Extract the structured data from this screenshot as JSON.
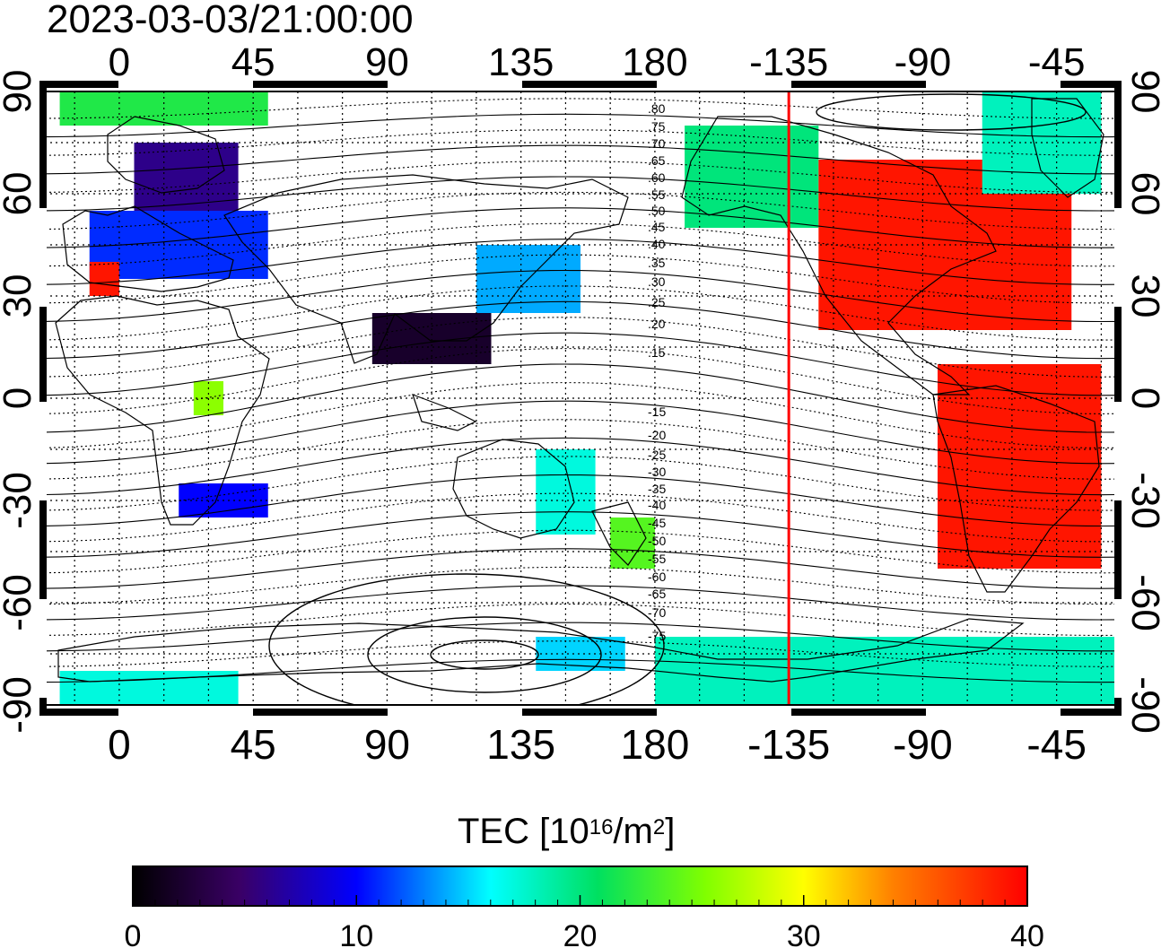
{
  "timestamp": "2023-03-03/21:00:00",
  "lon_tick_labels": [
    "0",
    "45",
    "90",
    "135",
    "180",
    "-135",
    "-90",
    "-45"
  ],
  "lat_tick_labels": [
    "90",
    "60",
    "30",
    "0",
    "-30",
    "-60",
    "-90"
  ],
  "contour_labels_north": [
    ".80",
    ".75",
    ".70",
    ".65",
    ".60",
    ".55",
    ".50",
    ".45",
    ".40",
    ".35",
    ".30",
    ".25",
    ".20",
    ".15"
  ],
  "contour_labels_south": [
    "-15",
    "-20",
    "-25",
    "-30",
    "-35",
    "-40",
    "-45",
    "-50",
    "-55",
    "-60",
    "-65",
    "-70",
    "-75"
  ],
  "colorbar": {
    "title_prefix": "TEC  [10",
    "title_exp1": "16",
    "title_mid": "/m",
    "title_exp2": "2",
    "title_suffix": "]",
    "tick_labels": [
      "0",
      "10",
      "20",
      "30",
      "40"
    ],
    "min": 0,
    "max": 40
  },
  "terminator_longitude": -135,
  "colors": {
    "terminator": "#ff0000",
    "background": "#ffffff"
  },
  "chart_data": {
    "type": "heatmap",
    "title": "2023-03-03/21:00:00",
    "xlim": [
      -25,
      335
    ],
    "ylim": [
      -90,
      90
    ],
    "value_range": [
      0,
      40
    ],
    "patches": [
      {
        "lon": [
          5,
          40
        ],
        "lat": [
          55,
          75
        ],
        "tec": 6
      },
      {
        "lon": [
          -10,
          50
        ],
        "lat": [
          35,
          55
        ],
        "tec": 11
      },
      {
        "lon": [
          -20,
          50
        ],
        "lat": [
          80,
          90
        ],
        "tec": 22
      },
      {
        "lon": [
          -10,
          0
        ],
        "lat": [
          30,
          40
        ],
        "tec": 39
      },
      {
        "lon": [
          20,
          50
        ],
        "lat": [
          -35,
          -25
        ],
        "tec": 10
      },
      {
        "lon": [
          25,
          35
        ],
        "lat": [
          -5,
          5
        ],
        "tec": 26
      },
      {
        "lon": [
          120,
          155
        ],
        "lat": [
          25,
          45
        ],
        "tec": 14
      },
      {
        "lon": [
          85,
          125
        ],
        "lat": [
          10,
          25
        ],
        "tec": 2
      },
      {
        "lon": [
          140,
          160
        ],
        "lat": [
          -40,
          -15
        ],
        "tec": 17
      },
      {
        "lon": [
          165,
          180
        ],
        "lat": [
          -50,
          -35
        ],
        "tec": 24
      },
      {
        "lon": [
          190,
          235
        ],
        "lat": [
          50,
          80
        ],
        "tec": 20
      },
      {
        "lon": [
          235,
          320
        ],
        "lat": [
          20,
          70
        ],
        "tec": 39
      },
      {
        "lon": [
          275,
          330
        ],
        "lat": [
          -50,
          10
        ],
        "tec": 39
      },
      {
        "lon": [
          290,
          330
        ],
        "lat": [
          60,
          90
        ],
        "tec": 18
      },
      {
        "lon": [
          140,
          170
        ],
        "lat": [
          -80,
          -70
        ],
        "tec": 15
      },
      {
        "lon": [
          -20,
          40
        ],
        "lat": [
          -90,
          -80
        ],
        "tec": 17
      },
      {
        "lon": [
          180,
          335
        ],
        "lat": [
          -90,
          -70
        ],
        "tec": 18
      }
    ]
  }
}
